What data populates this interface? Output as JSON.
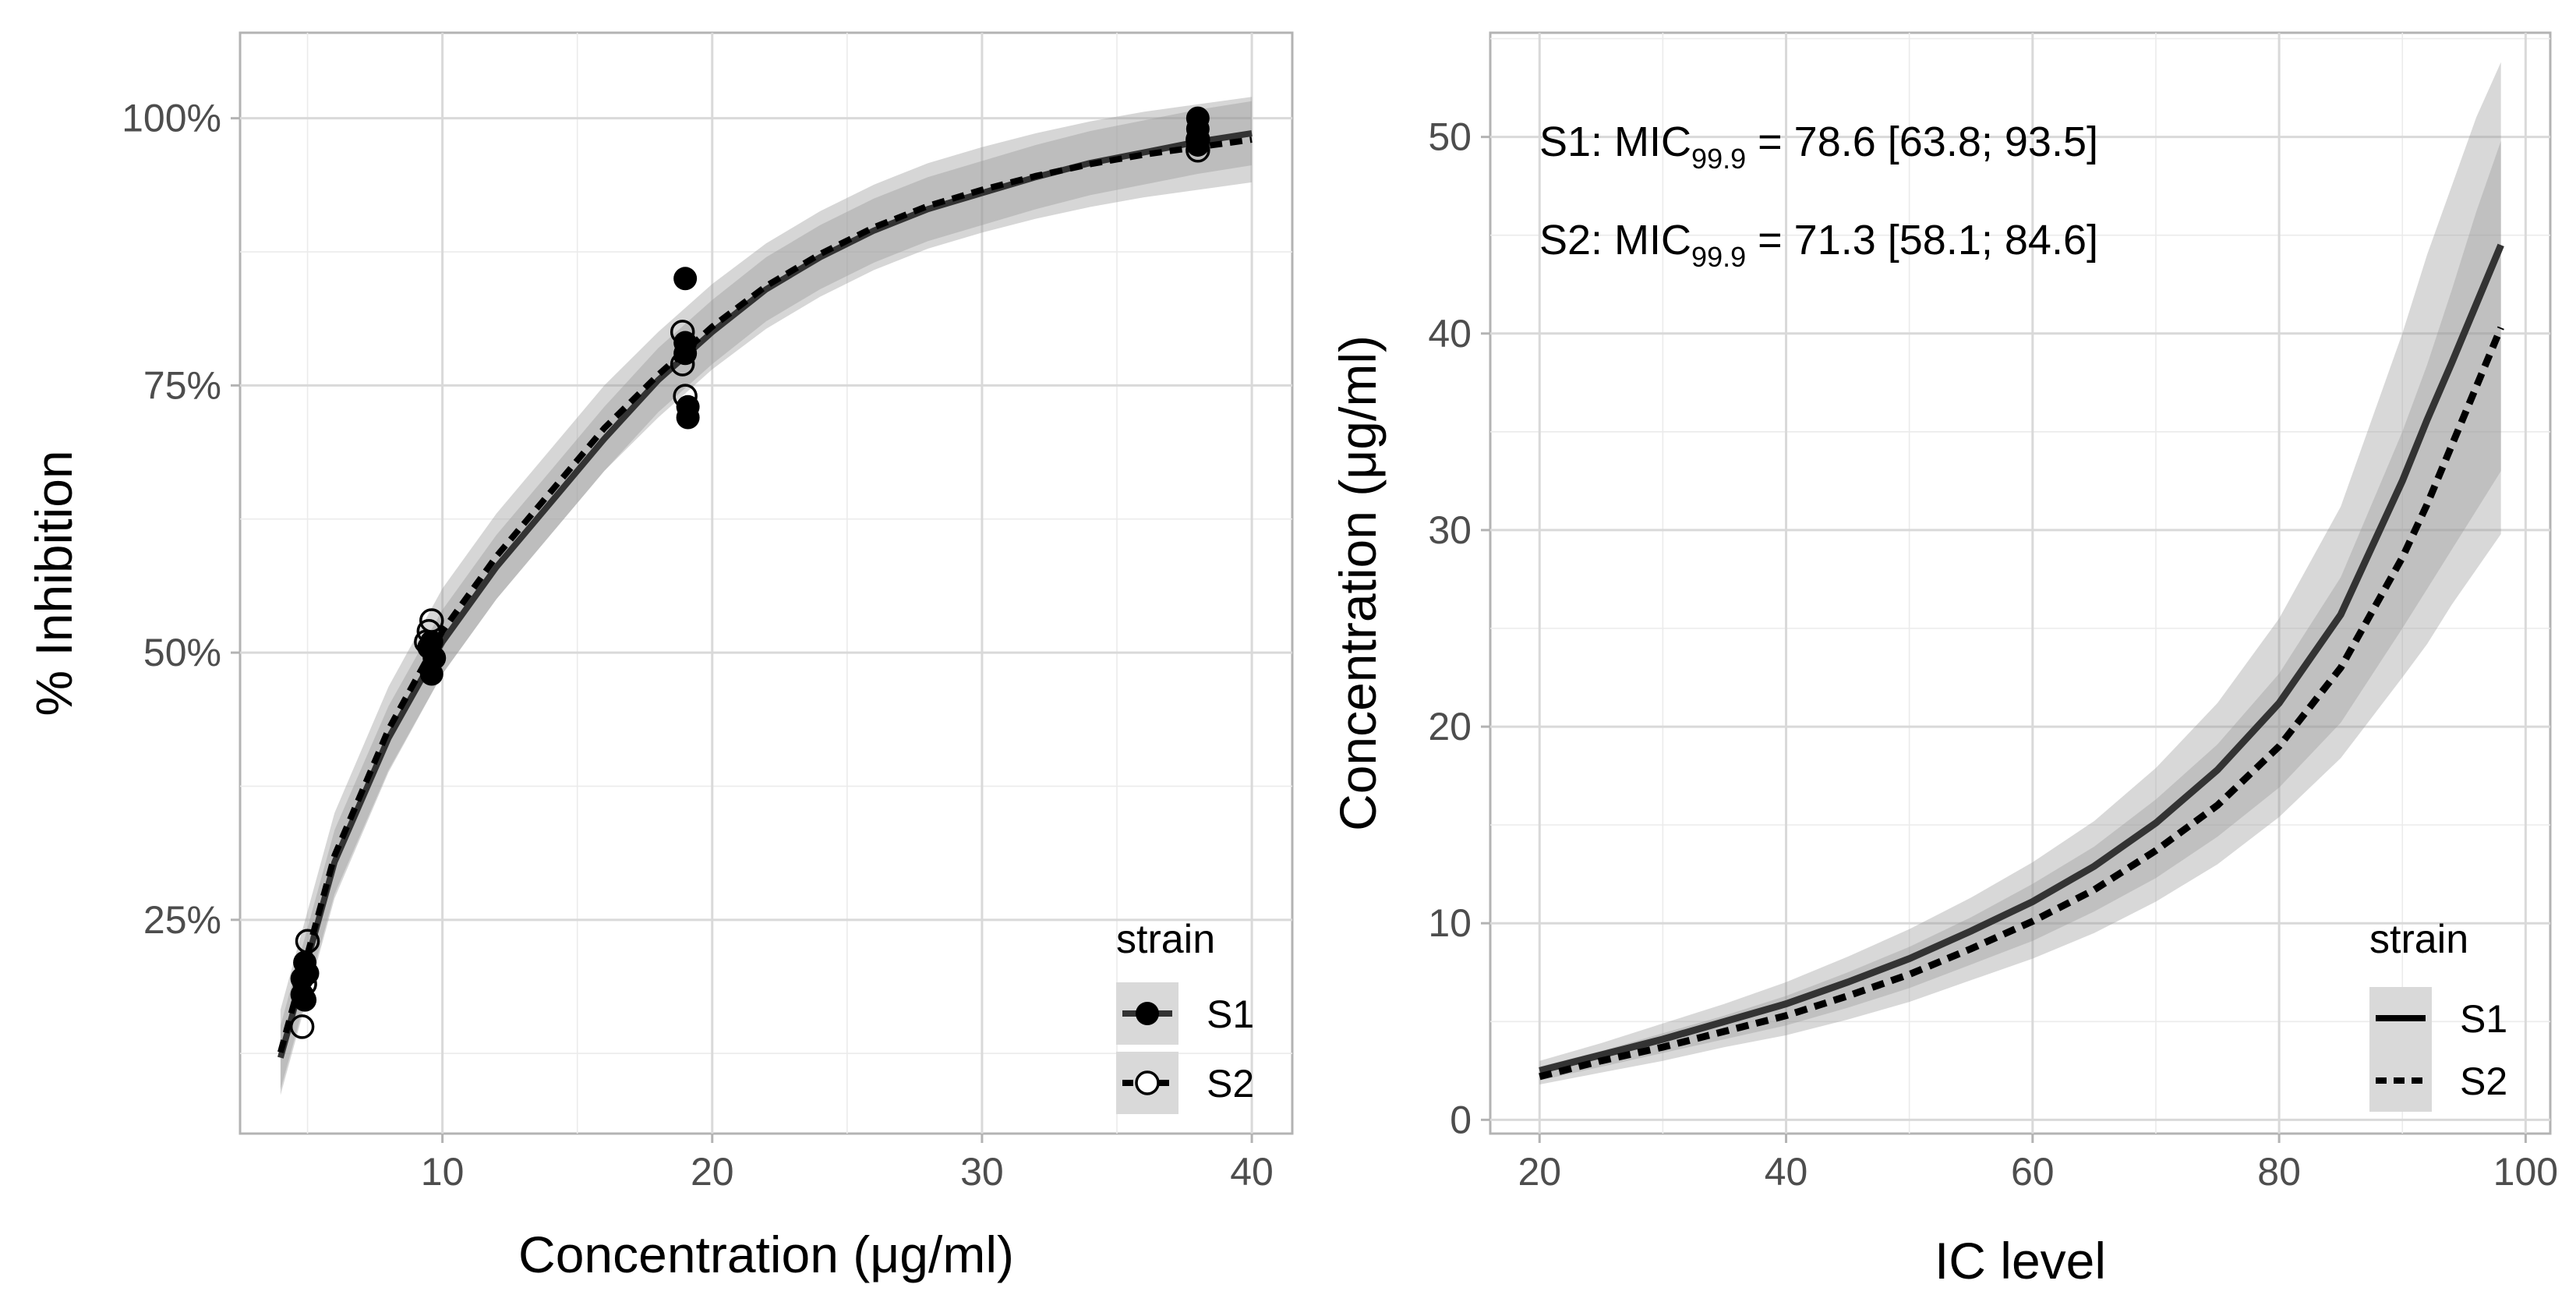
{
  "chart_data": [
    {
      "type": "scatter",
      "xlabel": "Concentration (μg/ml)",
      "ylabel": "% Inhibition",
      "xlim": [
        2.5,
        41.5
      ],
      "ylim": [
        5,
        108
      ],
      "x_ticks": [
        10,
        20,
        30,
        40
      ],
      "x_tick_labels": [
        "10",
        "20",
        "30",
        "40"
      ],
      "y_ticks": [
        25,
        50,
        75,
        100
      ],
      "y_tick_labels": [
        "25%",
        "50%",
        "75%",
        "100%"
      ],
      "grid": true,
      "legend": {
        "title": "strain",
        "position": "bottom-right",
        "entries": [
          "S1",
          "S2"
        ]
      },
      "series": [
        {
          "name": "S1",
          "marker": "filled-circle",
          "line": "solid",
          "points": [
            [
              4.8,
              18
            ],
            [
              4.8,
              19.5
            ],
            [
              4.9,
              21
            ],
            [
              4.9,
              17.5
            ],
            [
              5.0,
              20
            ],
            [
              9.6,
              48
            ],
            [
              9.7,
              49.5
            ],
            [
              9.6,
              51
            ],
            [
              9.5,
              50.5
            ],
            [
              19.0,
              85
            ],
            [
              19.0,
              79
            ],
            [
              19.0,
              78
            ],
            [
              19.1,
              73
            ],
            [
              19.1,
              72
            ],
            [
              38.0,
              98
            ],
            [
              38.0,
              99
            ],
            [
              38.0,
              100
            ],
            [
              38.0,
              97.5
            ]
          ],
          "curve": [
            [
              4,
              12.1
            ],
            [
              6,
              30.4
            ],
            [
              8,
              42
            ],
            [
              10,
              51
            ],
            [
              12,
              58
            ],
            [
              14,
              64
            ],
            [
              16,
              70
            ],
            [
              18,
              75.5
            ],
            [
              20,
              80
            ],
            [
              22,
              84
            ],
            [
              24,
              87
            ],
            [
              26,
              89.5
            ],
            [
              28,
              91.5
            ],
            [
              30,
              93
            ],
            [
              32,
              94.5
            ],
            [
              34,
              95.8
            ],
            [
              36,
              96.8
            ],
            [
              38,
              97.8
            ],
            [
              40,
              98.6
            ]
          ]
        },
        {
          "name": "S2",
          "marker": "open-circle",
          "line": "dashed",
          "points": [
            [
              4.8,
              15
            ],
            [
              5.0,
              23
            ],
            [
              4.9,
              19
            ],
            [
              9.5,
              52
            ],
            [
              9.6,
              53
            ],
            [
              9.4,
              51
            ],
            [
              18.9,
              80
            ],
            [
              18.9,
              77
            ],
            [
              19.0,
              74
            ],
            [
              38.0,
              97
            ],
            [
              38.0,
              98
            ]
          ],
          "curve": [
            [
              4,
              12.6
            ],
            [
              6,
              31
            ],
            [
              8,
              42.8
            ],
            [
              10,
              52
            ],
            [
              12,
              59
            ],
            [
              14,
              65
            ],
            [
              16,
              71
            ],
            [
              18,
              76
            ],
            [
              20,
              80.5
            ],
            [
              22,
              84.3
            ],
            [
              24,
              87.3
            ],
            [
              26,
              89.8
            ],
            [
              28,
              91.8
            ],
            [
              30,
              93.3
            ],
            [
              32,
              94.6
            ],
            [
              34,
              95.7
            ],
            [
              36,
              96.6
            ],
            [
              38,
              97.3
            ],
            [
              40,
              98
            ]
          ]
        }
      ]
    },
    {
      "type": "line",
      "xlabel": "IC level",
      "ylabel": "Concentration (μg/ml)",
      "xlim": [
        16,
        102
      ],
      "ylim": [
        -0.7,
        55.3
      ],
      "x_ticks": [
        20,
        40,
        60,
        80,
        100
      ],
      "x_tick_labels": [
        "20",
        "40",
        "60",
        "80",
        "100"
      ],
      "y_ticks": [
        0,
        10,
        20,
        30,
        40,
        50
      ],
      "y_tick_labels": [
        "0",
        "10",
        "20",
        "30",
        "40",
        "50"
      ],
      "grid": true,
      "legend": {
        "title": "strain",
        "position": "bottom-right",
        "entries": [
          "S1",
          "S2"
        ]
      },
      "annotations": [
        {
          "prefix": "S1: MIC",
          "subscript": "99.9",
          "suffix": " = 78.6 [63.8; 93.5]"
        },
        {
          "prefix": "S2: MIC",
          "subscript": "99.9",
          "suffix": " = 71.3 [58.1; 84.6]"
        }
      ],
      "series": [
        {
          "name": "S1",
          "line": "solid",
          "x": [
            20,
            25,
            30,
            35,
            40,
            45,
            50,
            55,
            60,
            65,
            70,
            75,
            80,
            85,
            90,
            92,
            94,
            96,
            98
          ],
          "y": [
            2.5,
            3.3,
            4.1,
            5.0,
            5.9,
            7.0,
            8.2,
            9.6,
            11.1,
            12.9,
            15.1,
            17.8,
            21.2,
            25.7,
            32.5,
            35.6,
            38.5,
            41.5,
            44.5
          ],
          "band": [
            [
              2.0,
              3.0
            ],
            [
              2.7,
              3.9
            ],
            [
              3.4,
              4.9
            ],
            [
              4.1,
              5.9
            ],
            [
              4.8,
              7.0
            ],
            [
              5.7,
              8.3
            ],
            [
              6.7,
              9.7
            ],
            [
              7.9,
              11.3
            ],
            [
              9.1,
              13.1
            ],
            [
              10.6,
              15.2
            ],
            [
              12.3,
              17.9
            ],
            [
              14.4,
              21.2
            ],
            [
              16.9,
              25.5
            ],
            [
              20.2,
              31.2
            ],
            [
              25.0,
              40.0
            ],
            [
              27.0,
              44.0
            ],
            [
              29.0,
              47.5
            ],
            [
              31.0,
              51.0
            ],
            [
              33.0,
              53.8
            ]
          ]
        },
        {
          "name": "S2",
          "line": "dashed",
          "x": [
            20,
            25,
            30,
            35,
            40,
            45,
            50,
            55,
            60,
            65,
            70,
            75,
            80,
            85,
            90,
            92,
            94,
            96,
            98
          ],
          "y": [
            2.2,
            3.0,
            3.7,
            4.5,
            5.3,
            6.3,
            7.4,
            8.7,
            10.1,
            11.7,
            13.7,
            16.0,
            19.0,
            23.0,
            28.6,
            31.3,
            34.3,
            37.3,
            40.3
          ],
          "band": [
            [
              1.8,
              2.7
            ],
            [
              2.4,
              3.5
            ],
            [
              3.0,
              4.4
            ],
            [
              3.7,
              5.3
            ],
            [
              4.3,
              6.3
            ],
            [
              5.1,
              7.5
            ],
            [
              6.0,
              8.8
            ],
            [
              7.1,
              10.3
            ],
            [
              8.2,
              12.0
            ],
            [
              9.5,
              13.9
            ],
            [
              11.1,
              16.3
            ],
            [
              13.0,
              19.1
            ],
            [
              15.4,
              22.7
            ],
            [
              18.4,
              27.6
            ],
            [
              22.5,
              35.0
            ],
            [
              24.2,
              38.4
            ],
            [
              26.2,
              42.2
            ],
            [
              28.0,
              46.2
            ],
            [
              29.8,
              49.8
            ]
          ]
        }
      ]
    }
  ]
}
